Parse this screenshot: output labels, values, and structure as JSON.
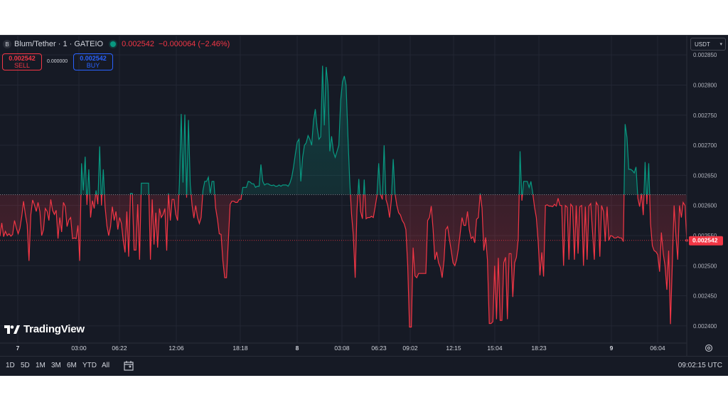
{
  "header": {
    "symbol": "Blum/Tether · 1 · GATEIO",
    "last_price": "0.002542",
    "change": "−0.000064 (−2.46%)"
  },
  "order": {
    "sell_value": "0.002542",
    "sell_label": "SELL",
    "buy_value": "0.002542",
    "buy_label": "BUY",
    "spread": "0.000000"
  },
  "currency_selector": "USDT",
  "brand": "TradingView",
  "range_buttons": [
    "1D",
    "5D",
    "1M",
    "3M",
    "6M",
    "YTD",
    "All"
  ],
  "clock": "09:02:15 UTC",
  "colors": {
    "up": "#089981",
    "down": "#f23645",
    "background": "#161a25",
    "grid": "#232734"
  },
  "chart_data": {
    "type": "area",
    "baseline": 0.002618,
    "last_price_label": "0.002542",
    "ylim": [
      0.002375,
      0.002862
    ],
    "y_ticks": [
      "0.002850",
      "0.002800",
      "0.002750",
      "0.002700",
      "0.002650",
      "0.002600",
      "0.002550",
      "0.002500",
      "0.002450",
      "0.002400"
    ],
    "x_ticks": [
      "7",
      "03:00",
      "06:22",
      "12:06",
      "18:18",
      "8",
      "03:08",
      "06:23",
      "09:02",
      "12:15",
      "15:04",
      "18:23",
      "9",
      "06:04"
    ],
    "x_tick_bold": [
      true,
      false,
      false,
      false,
      false,
      true,
      false,
      false,
      false,
      false,
      false,
      false,
      true,
      false
    ],
    "points": [
      0.002549,
      0.002571,
      0.002548,
      0.002557,
      0.00255,
      0.002553,
      0.002549,
      0.002552,
      0.002575,
      0.002563,
      0.002553,
      0.002562,
      0.002582,
      0.002607,
      0.002585,
      0.002568,
      0.002508,
      0.002584,
      0.002609,
      0.002601,
      0.00259,
      0.002605,
      0.00259,
      0.00255,
      0.00256,
      0.002595,
      0.00259,
      0.002575,
      0.00261,
      0.002592,
      0.002585,
      0.002592,
      0.002545,
      0.00258,
      0.002556,
      0.002605,
      0.002598,
      0.002565,
      0.002576,
      0.00258,
      0.002545,
      0.002546,
      0.002545,
      0.002567,
      0.002508,
      0.00267,
      0.002625,
      0.002681,
      0.002601,
      0.00266,
      0.00258,
      0.002608,
      0.002595,
      0.002625,
      0.002602,
      0.002698,
      0.0026,
      0.00266,
      0.002598,
      0.002566,
      0.00255,
      0.002565,
      0.002598,
      0.002575,
      0.00259,
      0.00256,
      0.00258,
      0.00257,
      0.002542,
      0.002522,
      0.00259,
      0.002515,
      0.00262,
      0.00262,
      0.002526,
      0.002526,
      0.002602,
      0.00251,
      0.002637,
      0.002637,
      0.002637,
      0.002637,
      0.002637,
      0.00251,
      0.00261,
      0.002535,
      0.002588,
      0.00253,
      0.002595,
      0.00258,
      0.002585,
      0.002595,
      0.002525,
      0.00262,
      0.002575,
      0.00261,
      0.00261,
      0.002585,
      0.002575,
      0.002635,
      0.002752,
      0.002638,
      0.002751,
      0.002613,
      0.002742,
      0.002635,
      0.0026,
      0.002579,
      0.0026,
      0.00258,
      0.00257,
      0.00258,
      0.002625,
      0.00264,
      0.00264,
      0.002647,
      0.00262,
      0.00264,
      0.00264,
      0.002596,
      0.002577,
      0.002553,
      0.002552,
      0.002508,
      0.00248,
      0.00248,
      0.002542,
      0.002602,
      0.002607,
      0.002607,
      0.002605,
      0.002605,
      0.00261,
      0.00261,
      0.00263,
      0.00263,
      0.00263,
      0.00264,
      0.002639,
      0.002636,
      0.002636,
      0.00263,
      0.002632,
      0.002632,
      0.002668,
      0.00264,
      0.002634,
      0.002636,
      0.002636,
      0.002634,
      0.002633,
      0.002634,
      0.002632,
      0.002632,
      0.002634,
      0.002632,
      0.002634,
      0.002634,
      0.002634,
      0.002632,
      0.002637,
      0.002647,
      0.002664,
      0.002686,
      0.002705,
      0.00271,
      0.00264,
      0.00268,
      0.0027,
      0.002704,
      0.002716,
      0.00271,
      0.0027,
      0.00274,
      0.00276,
      0.00273,
      0.00271,
      0.002714,
      0.002832,
      0.002733,
      0.00283,
      0.0028,
      0.00269,
      0.002715,
      0.002689,
      0.00268,
      0.00269,
      0.0027,
      0.002775,
      0.002805,
      0.002815,
      0.0028,
      0.002715,
      0.00264,
      0.002585,
      0.00255,
      0.00248,
      0.002592,
      0.002644,
      0.00259,
      0.002578,
      0.002643,
      0.002578,
      0.00258,
      0.00258,
      0.002582,
      0.00258,
      0.002597,
      0.002616,
      0.00267,
      0.002618,
      0.00261,
      0.0027,
      0.00261,
      0.0026,
      0.00258,
      0.002609,
      0.002677,
      0.00262,
      0.0026,
      0.002588,
      0.002584,
      0.002575,
      0.00257,
      0.00256,
      0.0025,
      0.002398,
      0.002398,
      0.00253,
      0.002483,
      0.00248,
      0.002487,
      0.002487,
      0.002487,
      0.002487,
      0.002487,
      0.002575,
      0.00258,
      0.002599,
      0.00256,
      0.00251,
      0.002523,
      0.002505,
      0.002497,
      0.00248,
      0.002508,
      0.00256,
      0.002565,
      0.002544,
      0.002525,
      0.002505,
      0.0025,
      0.00251,
      0.002528,
      0.002555,
      0.00258,
      0.002567,
      0.002567,
      0.00259,
      0.00256,
      0.002545,
      0.002548,
      0.002538,
      0.002577,
      0.00258,
      0.00262,
      0.002596,
      0.002525,
      0.002547,
      0.00251,
      0.002404,
      0.002404,
      0.002407,
      0.0025,
      0.002411,
      0.002513,
      0.002409,
      0.002409,
      0.002505,
      0.002514,
      0.002411,
      0.00252,
      0.00252,
      0.002448,
      0.002505,
      0.002514,
      0.002545,
      0.00269,
      0.002608,
      0.00264,
      0.00264,
      0.00264,
      0.00263,
      0.00264,
      0.00262,
      0.002597,
      0.00258,
      0.00254,
      0.002484,
      0.002522,
      0.002482,
      0.0026,
      0.002601,
      0.002599,
      0.002599,
      0.002598,
      0.002602,
      0.002599,
      0.002612,
      0.0026,
      0.0026,
      0.0025,
      0.0026,
      0.002597,
      0.00251,
      0.002602,
      0.002598,
      0.00251,
      0.0026,
      0.00252,
      0.002598,
      0.0026,
      0.0025,
      0.002598,
      0.00251,
      0.002599,
      0.002603,
      0.002555,
      0.00251,
      0.002605,
      0.0026,
      0.002515,
      0.0026,
      0.00259,
      0.00254,
      0.002598,
      0.002542,
      0.00255,
      0.002549,
      0.002546,
      0.002546,
      0.002548,
      0.002546,
      0.002546,
      0.00254,
      0.002735,
      0.002713,
      0.00266,
      0.00266,
      0.002658,
      0.002654,
      0.002664,
      0.002612,
      0.002598,
      0.00262,
      0.002584,
      0.002672,
      0.002602,
      0.00267,
      0.00257,
      0.002533,
      0.002525,
      0.002523,
      0.002518,
      0.00249,
      0.002555,
      0.00252,
      0.0025,
      0.00246,
      0.002525,
      0.002403,
      0.0025,
      0.0026,
      0.00255,
      0.00251,
      0.0026,
      0.00258,
      0.002605,
      0.0026,
      0.002542
    ]
  }
}
